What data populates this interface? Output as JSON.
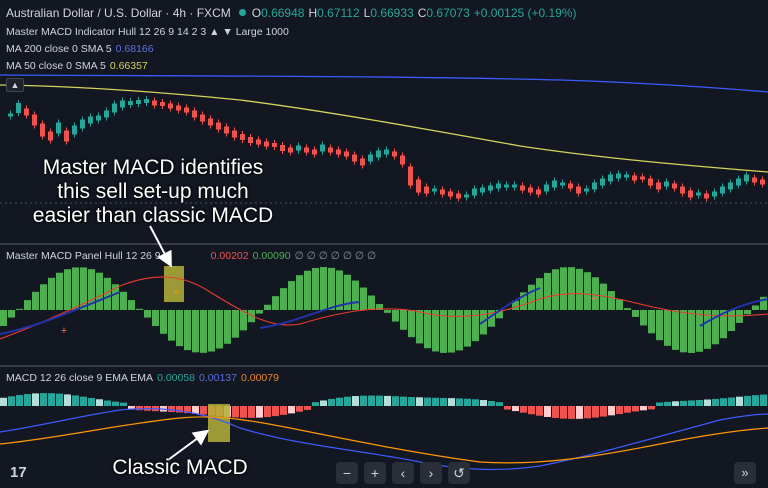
{
  "header": {
    "symbol_title": "Australian Dollar / U.S. Dollar · 4h · FXCM",
    "ohlc": {
      "o_label": "O",
      "o_value": "0.66948",
      "h_label": "H",
      "h_value": "0.67112",
      "l_label": "L",
      "l_value": "0.66933",
      "c_label": "C",
      "c_value": "0.67073",
      "change": "+0.00125 (+0.19%)"
    }
  },
  "legends": {
    "master_ind": "Master MACD Indicator Hull 12 26 9 14 2 3 ▲ ▼ Large 1000",
    "ma200_label": "MA 200 close 0 SMA 5",
    "ma200_value": "0.68166",
    "ma50_label": "MA 50 close 0 SMA 5",
    "ma50_value": "0.66357",
    "panel_label": "Master MACD Panel Hull 12 26 9",
    "panel_v1": "0.00202",
    "panel_v2": "0.00090",
    "panel_extra": "∅ ∅ ∅ ∅ ∅ ∅ ∅",
    "macd_label": "MACD 12 26 close 9 EMA EMA",
    "macd_v1": "0.00058",
    "macd_v2": "0.00137",
    "macd_v3": "0.00079"
  },
  "annotations": {
    "master_text": "Master MACD identifies this sell set-up much easier than classic MACD",
    "classic_text": "Classic MACD"
  },
  "toolbar": {
    "zoom_out": "−",
    "zoom_in": "+",
    "scroll_left": "‹",
    "scroll_right": "›",
    "reset": "↺",
    "go_latest": "»"
  },
  "colors": {
    "background": "#131722",
    "bull": "#26a69a",
    "bear": "#ef5350",
    "ma200": "#3d5afe",
    "ma50": "#d6d35a",
    "hist_green": "#4caf50",
    "signal_red": "#ef3b2f",
    "highlight": "#b5b13a"
  }
}
